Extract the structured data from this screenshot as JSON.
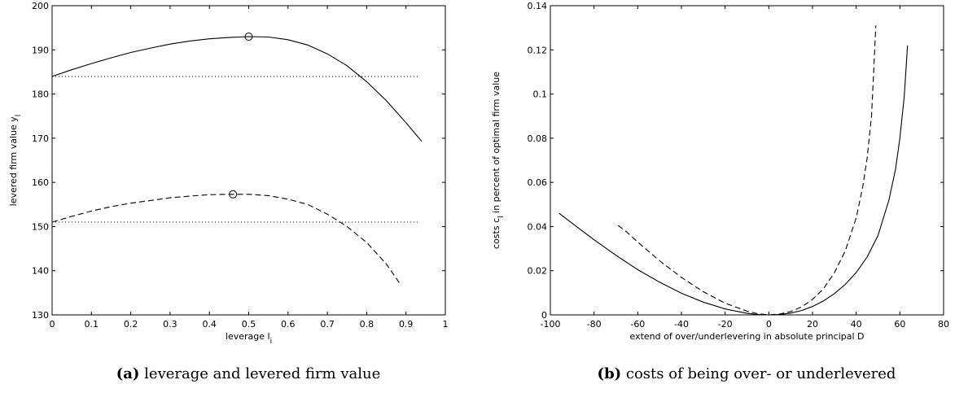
{
  "chart_data": [
    {
      "type": "line",
      "caption_letter": "(a)",
      "caption_text": " leverage and levered firm value",
      "xlabel": "leverage l",
      "xlabel_sub": "i",
      "ylabel": "levered firm value y",
      "ylabel_sub": "l",
      "xlim": [
        0,
        1
      ],
      "ylim": [
        130,
        200
      ],
      "xticks": [
        0,
        0.1,
        0.2,
        0.3,
        0.4,
        0.5,
        0.6,
        0.7,
        0.8,
        0.9,
        1
      ],
      "xtick_labels": [
        "0",
        "0.1",
        "0.2",
        "0.3",
        "0.4",
        "0.5",
        "0.6",
        "0.7",
        "0.8",
        "0.9",
        "1"
      ],
      "yticks": [
        130,
        140,
        150,
        160,
        170,
        180,
        190,
        200
      ],
      "ytick_labels": [
        "130",
        "140",
        "150",
        "160",
        "170",
        "180",
        "190",
        "200"
      ],
      "grid": false,
      "series": [
        {
          "style": "solid",
          "x": [
            0,
            0.05,
            0.1,
            0.15,
            0.2,
            0.25,
            0.3,
            0.35,
            0.4,
            0.45,
            0.5,
            0.55,
            0.6,
            0.65,
            0.7,
            0.75,
            0.8,
            0.85,
            0.9,
            0.94
          ],
          "y": [
            184.0,
            185.5,
            186.9,
            188.2,
            189.4,
            190.4,
            191.3,
            192.0,
            192.5,
            192.8,
            193.0,
            192.9,
            192.3,
            191.1,
            189.1,
            186.4,
            182.8,
            178.5,
            173.5,
            169.3
          ]
        },
        {
          "style": "dashed",
          "x": [
            0,
            0.05,
            0.1,
            0.15,
            0.2,
            0.25,
            0.3,
            0.35,
            0.4,
            0.45,
            0.5,
            0.55,
            0.6,
            0.65,
            0.7,
            0.75,
            0.8,
            0.85,
            0.885
          ],
          "y": [
            151.0,
            152.3,
            153.5,
            154.5,
            155.3,
            155.9,
            156.5,
            156.9,
            157.2,
            157.3,
            157.3,
            157.0,
            156.2,
            155.0,
            152.8,
            150.0,
            146.4,
            141.5,
            137.0
          ]
        },
        {
          "style": "dotted",
          "x": [
            0,
            0.93
          ],
          "y": [
            184.0,
            184.0
          ]
        },
        {
          "style": "dotted",
          "x": [
            0,
            0.93
          ],
          "y": [
            151.0,
            151.0
          ]
        }
      ],
      "markers": [
        {
          "x": 0.5,
          "y": 193.0
        },
        {
          "x": 0.46,
          "y": 157.3
        }
      ]
    },
    {
      "type": "line",
      "caption_letter": "(b)",
      "caption_text": " costs of being over- or underlevered",
      "xlabel": "extend of over/underlevering in absolute principal D",
      "xlabel_sub": "",
      "ylabel": "costs c",
      "ylabel_sub": "l",
      "ylabel_rest": " in percent of optimal firm value",
      "xlim": [
        -100,
        80
      ],
      "ylim": [
        0,
        0.14
      ],
      "xticks": [
        -100,
        -80,
        -60,
        -40,
        -20,
        0,
        20,
        40,
        60,
        80
      ],
      "xtick_labels": [
        "-100",
        "-80",
        "-60",
        "-40",
        "-20",
        "0",
        "20",
        "40",
        "60",
        "80"
      ],
      "yticks": [
        0,
        0.02,
        0.04,
        0.06,
        0.08,
        0.1,
        0.12,
        0.14
      ],
      "ytick_labels": [
        "0",
        "0.02",
        "0.04",
        "0.06",
        "0.08",
        "0.1",
        "0.12",
        "0.14"
      ],
      "grid": false,
      "series": [
        {
          "style": "solid",
          "x": [
            -96,
            -90,
            -80,
            -70,
            -60,
            -50,
            -40,
            -30,
            -20,
            -10,
            -5,
            0,
            5,
            10,
            15,
            20,
            25,
            30,
            35,
            40,
            45,
            50,
            55,
            58,
            60,
            62,
            63.5
          ],
          "y": [
            0.046,
            0.0415,
            0.034,
            0.027,
            0.0205,
            0.0148,
            0.0098,
            0.0058,
            0.0027,
            0.0007,
            0.0002,
            0.0,
            0.0002,
            0.0008,
            0.002,
            0.0038,
            0.0063,
            0.0096,
            0.0138,
            0.0192,
            0.0262,
            0.036,
            0.052,
            0.066,
            0.08,
            0.099,
            0.122
          ]
        },
        {
          "style": "dashed",
          "x": [
            -69,
            -65,
            -60,
            -50,
            -40,
            -30,
            -20,
            -10,
            -5,
            0,
            5,
            10,
            15,
            20,
            25,
            30,
            35,
            40,
            43,
            45,
            47,
            48,
            49
          ],
          "y": [
            0.0405,
            0.0375,
            0.033,
            0.0245,
            0.017,
            0.0105,
            0.0053,
            0.0017,
            0.0005,
            0.0,
            0.0004,
            0.0015,
            0.0036,
            0.007,
            0.0118,
            0.019,
            0.029,
            0.044,
            0.058,
            0.071,
            0.09,
            0.11,
            0.131
          ]
        }
      ],
      "markers": []
    }
  ]
}
